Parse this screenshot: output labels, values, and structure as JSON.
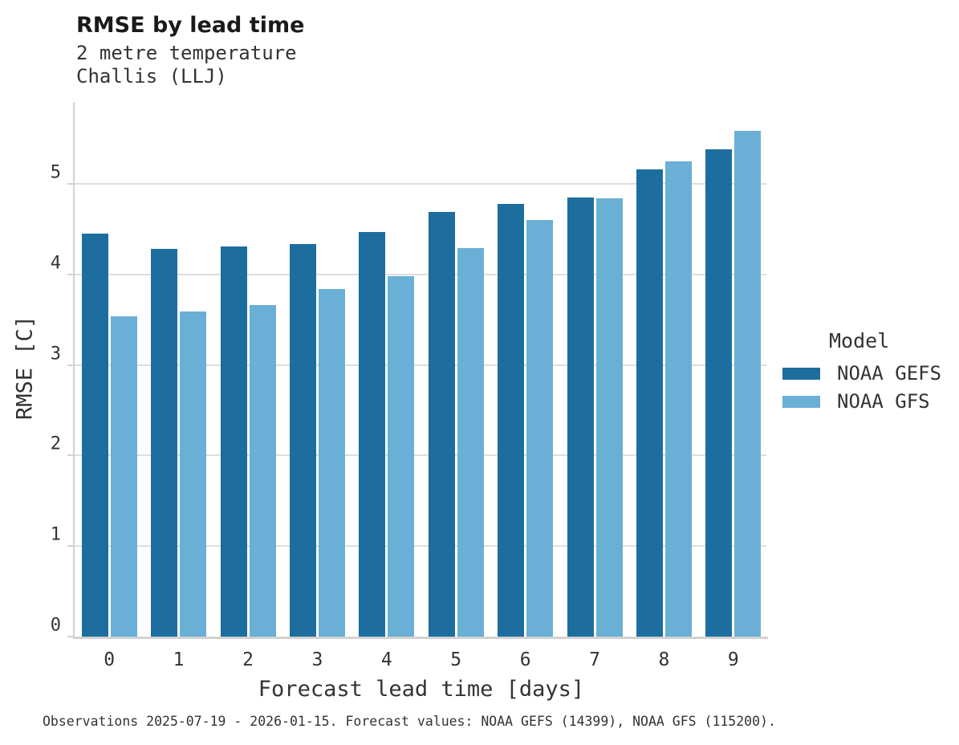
{
  "title": "RMSE by lead time",
  "subtitle_line1": "2 metre temperature",
  "subtitle_line2": "Challis (LLJ)",
  "footer": "Observations 2025-07-19 - 2026-01-15. Forecast values: NOAA GEFS (14399), NOAA GFS (115200).",
  "legend": {
    "title": "Model",
    "items": [
      {
        "label": "NOAA GEFS",
        "color": "#1d6e9e"
      },
      {
        "label": "NOAA GFS",
        "color": "#6aafd6"
      }
    ]
  },
  "colors": {
    "gefs_bar": "#1d6e9e",
    "gfs_bar": "#6aafd6",
    "spine": "#d2d2d2",
    "gridline": "#dedede"
  },
  "chart_data": {
    "type": "bar",
    "title": "RMSE by lead time",
    "subtitle": [
      "2 metre temperature",
      "Challis (LLJ)"
    ],
    "categories": [
      "0",
      "1",
      "2",
      "3",
      "4",
      "5",
      "6",
      "7",
      "8",
      "9"
    ],
    "series": [
      {
        "name": "NOAA GEFS",
        "color": "#1d6e9e",
        "values": [
          4.45,
          4.28,
          4.31,
          4.34,
          4.47,
          4.69,
          4.78,
          4.85,
          5.16,
          5.38
        ]
      },
      {
        "name": "NOAA GFS",
        "color": "#6aafd6",
        "values": [
          3.54,
          3.59,
          3.66,
          3.84,
          3.98,
          4.29,
          4.6,
          4.84,
          5.25,
          5.59
        ]
      }
    ],
    "xlabel": "Forecast lead time [days]",
    "ylabel": "RMSE [C]",
    "ylim": [
      0,
      5.905
    ],
    "yticks": [
      0,
      1,
      2,
      3,
      4,
      5
    ],
    "grid": true,
    "legend_title": "Model",
    "legend_position": "right"
  }
}
